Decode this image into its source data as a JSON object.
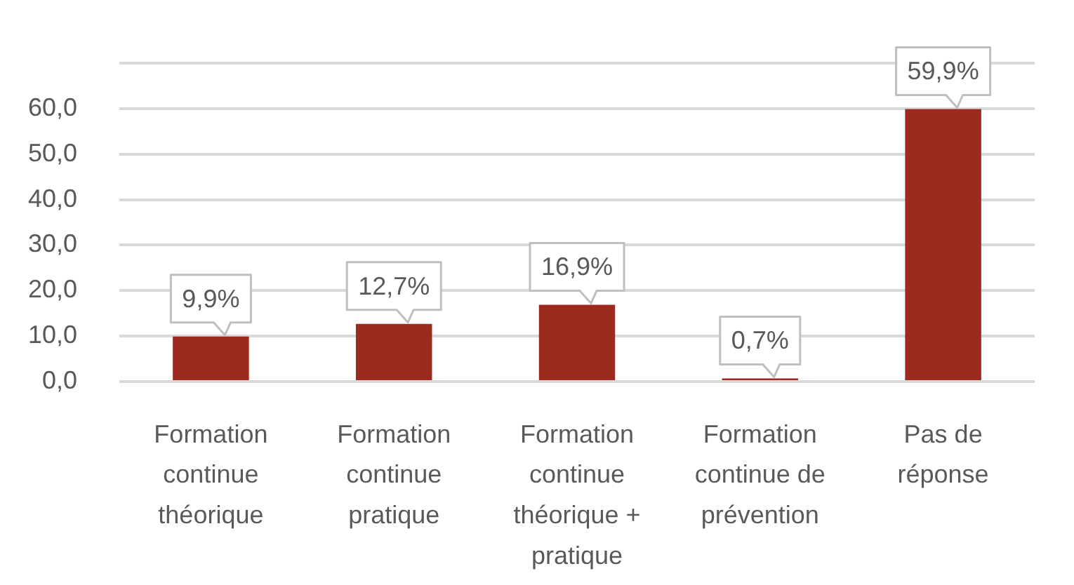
{
  "chart_data": {
    "type": "bar",
    "categories": [
      "Formation continue théorique",
      "Formation continue pratique",
      "Formation continue théorique + pratique",
      "Formation continue de prévention",
      "Pas de réponse"
    ],
    "values": [
      9.9,
      12.7,
      16.9,
      0.7,
      59.9
    ],
    "value_labels": [
      "9,9%",
      "12,7%",
      "16,9%",
      "0,7%",
      "59,9%"
    ],
    "color": "#9b2b1f",
    "ylim": [
      0,
      70
    ],
    "yticks": [
      {
        "value": 0,
        "label": "0,0"
      },
      {
        "value": 10,
        "label": "10,0"
      },
      {
        "value": 20,
        "label": "20,0"
      },
      {
        "value": 30,
        "label": "30,0"
      },
      {
        "value": 40,
        "label": "40,0"
      },
      {
        "value": 50,
        "label": "50,0"
      },
      {
        "value": 60,
        "label": "60,0"
      },
      {
        "value": 70,
        "label": null
      }
    ],
    "grid": "y"
  }
}
